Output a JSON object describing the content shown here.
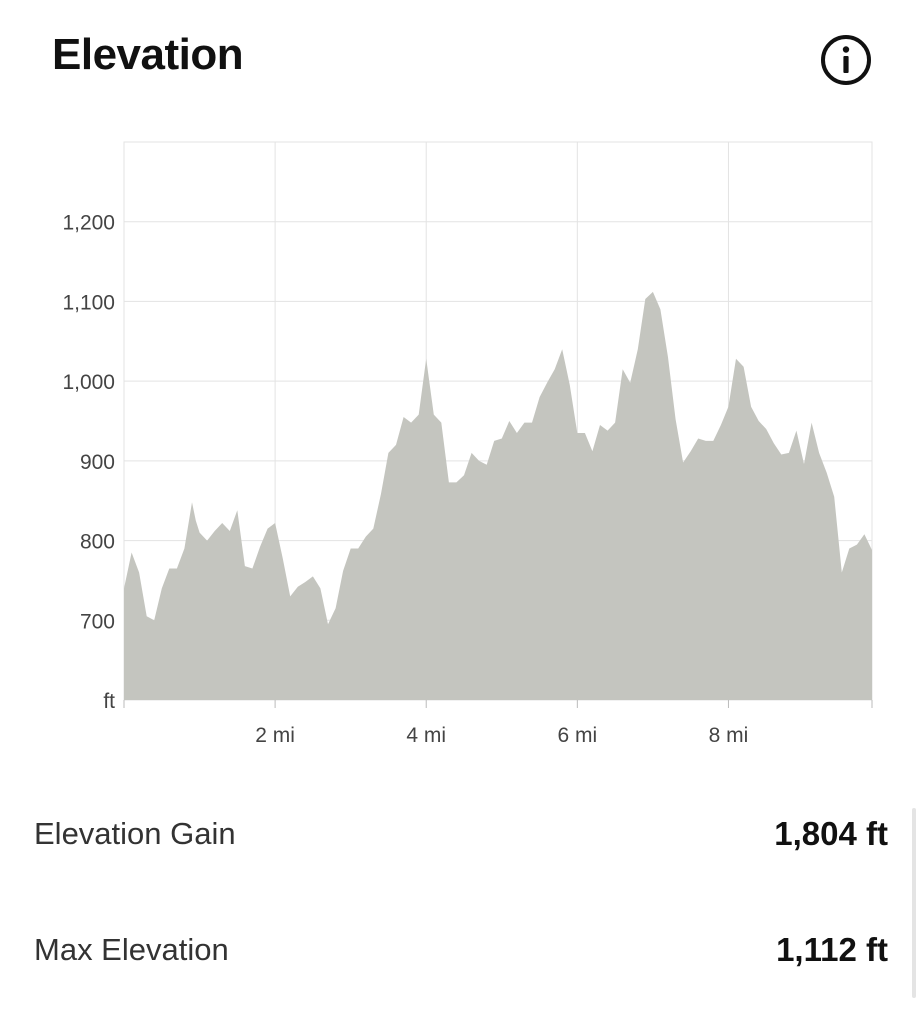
{
  "header": {
    "title": "Elevation"
  },
  "icons": {
    "info": "info-circle-icon"
  },
  "colors": {
    "area_fill": "#c4c5bf",
    "grid": "#e3e3e3",
    "text": "#111111"
  },
  "stats": [
    {
      "label": "Elevation Gain",
      "value": "1,804 ft"
    },
    {
      "label": "Max Elevation",
      "value": "1,112 ft"
    }
  ],
  "chart_data": {
    "type": "area",
    "x_unit": "mi",
    "y_unit": "ft",
    "xlim": [
      0,
      9.9
    ],
    "ylim": [
      600,
      1300
    ],
    "x_ticks": [
      2,
      4,
      6,
      8
    ],
    "x_tick_labels": [
      "2 mi",
      "4 mi",
      "6 mi",
      "8 mi"
    ],
    "y_ticks": [
      700,
      800,
      900,
      1000,
      1100,
      1200
    ],
    "y_tick_labels": [
      "700",
      "800",
      "900",
      "1,000",
      "1,100",
      "1,200"
    ],
    "y_axis_unit_label": "ft",
    "grid": true,
    "legend": "none",
    "x": [
      0,
      0.1,
      0.2,
      0.3,
      0.4,
      0.5,
      0.6,
      0.7,
      0.8,
      0.9,
      0.95,
      1.0,
      1.1,
      1.2,
      1.3,
      1.4,
      1.5,
      1.6,
      1.7,
      1.8,
      1.9,
      2.0,
      2.1,
      2.2,
      2.3,
      2.4,
      2.5,
      2.6,
      2.7,
      2.8,
      2.9,
      3.0,
      3.1,
      3.2,
      3.3,
      3.4,
      3.5,
      3.6,
      3.7,
      3.8,
      3.9,
      4.0,
      4.1,
      4.2,
      4.3,
      4.4,
      4.5,
      4.6,
      4.7,
      4.8,
      4.9,
      5.0,
      5.1,
      5.2,
      5.3,
      5.4,
      5.5,
      5.6,
      5.7,
      5.8,
      5.9,
      6.0,
      6.1,
      6.2,
      6.3,
      6.4,
      6.5,
      6.6,
      6.7,
      6.8,
      6.9,
      7.0,
      7.1,
      7.2,
      7.3,
      7.4,
      7.5,
      7.6,
      7.7,
      7.8,
      7.9,
      8.0,
      8.1,
      8.2,
      8.3,
      8.4,
      8.5,
      8.6,
      8.7,
      8.8,
      8.9,
      9.0,
      9.1,
      9.2,
      9.3,
      9.4,
      9.5,
      9.6,
      9.7,
      9.8,
      9.9
    ],
    "y": [
      740,
      785,
      760,
      705,
      700,
      740,
      765,
      765,
      790,
      848,
      825,
      810,
      800,
      812,
      822,
      812,
      838,
      768,
      765,
      792,
      815,
      822,
      778,
      730,
      742,
      748,
      755,
      740,
      695,
      715,
      762,
      790,
      790,
      805,
      815,
      858,
      910,
      920,
      955,
      948,
      958,
      1028,
      958,
      948,
      873,
      873,
      882,
      910,
      900,
      895,
      925,
      928,
      950,
      935,
      948,
      948,
      980,
      998,
      1015,
      1040,
      995,
      935,
      935,
      912,
      945,
      938,
      948,
      1015,
      998,
      1040,
      1103,
      1112,
      1090,
      1030,
      952,
      898,
      912,
      928,
      925,
      925,
      945,
      968,
      1028,
      1018,
      968,
      950,
      940,
      922,
      908,
      910,
      938,
      896,
      948,
      910,
      885,
      855,
      760,
      790,
      795,
      808,
      788
    ]
  }
}
